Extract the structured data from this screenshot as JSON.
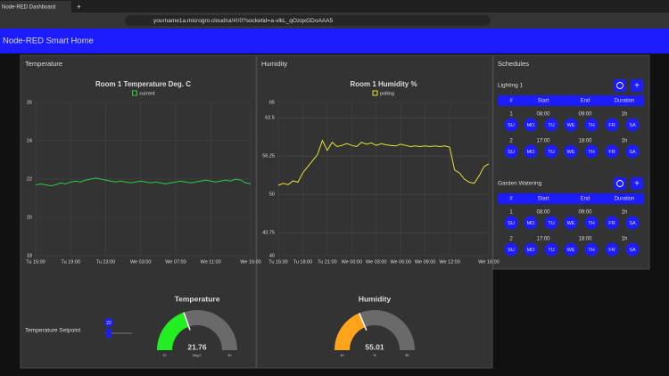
{
  "browser": {
    "tab_title": "Node-RED Dashboard",
    "url": "yourname1a.microgro.cloud/ui/#!/0?socketid=a-vlkL_qOzqxGDoAAA5"
  },
  "header": {
    "title": "Node-RED Smart Home"
  },
  "temperature": {
    "group_title": "Temperature",
    "chart": {
      "type": "line",
      "title": "Room 1 Temperature Deg. C",
      "categories": [
        "Tu 15:00",
        null,
        null,
        null,
        null,
        null,
        null,
        "Tu 19:00",
        null,
        null,
        null,
        null,
        null,
        null,
        "Tu 23:00",
        null,
        null,
        null,
        null,
        null,
        null,
        "We 03:00",
        null,
        null,
        null,
        null,
        null,
        null,
        "We 07:00",
        null,
        null,
        null,
        null,
        null,
        null,
        "We 11:00",
        null,
        null,
        null,
        null,
        null,
        null,
        null,
        "We 16:00"
      ],
      "series": [
        {
          "name": "current",
          "color": "#2ecc40",
          "values": [
            21.7,
            21.75,
            21.7,
            21.65,
            21.7,
            21.8,
            21.75,
            21.85,
            21.9,
            21.85,
            21.95,
            22.0,
            22.05,
            22.0,
            21.95,
            21.9,
            21.85,
            21.9,
            21.85,
            21.8,
            21.85,
            21.9,
            21.85,
            21.8,
            21.85,
            21.8,
            21.75,
            21.8,
            21.85,
            21.9,
            21.85,
            21.8,
            21.85,
            21.9,
            21.95,
            21.9,
            21.85,
            21.9,
            21.95,
            21.9,
            22.0,
            21.95,
            21.8,
            21.75
          ]
        }
      ],
      "ylim": [
        18,
        26
      ],
      "yticks": [
        18,
        20,
        22,
        24,
        26
      ],
      "grid": true
    },
    "setpoint": {
      "label": "Temperature Setpoint",
      "value": 22
    },
    "gauge": {
      "title": "Temperature",
      "value": 21.76,
      "units": "Deg.C",
      "min": 10,
      "max": 40,
      "color": "#22ee22"
    }
  },
  "humidity": {
    "group_title": "Humidity",
    "chart": {
      "type": "line",
      "title": "Room 1 Humidity %",
      "categories": [
        "Tu 15:00",
        null,
        null,
        null,
        null,
        "Tu 18:00",
        null,
        null,
        null,
        null,
        "Tu 21:00",
        null,
        null,
        null,
        null,
        "We 00:00",
        null,
        null,
        null,
        null,
        "We 03:00",
        null,
        null,
        null,
        null,
        "We 06:00",
        null,
        null,
        null,
        null,
        "We 09:00",
        null,
        null,
        null,
        null,
        "We 12:00",
        null,
        null,
        null,
        null,
        null,
        null,
        null,
        "We 16:00"
      ],
      "series": [
        {
          "name": "polling",
          "color": "#e6e62e",
          "values": [
            51.5,
            51.8,
            51.6,
            52.2,
            52,
            53.5,
            54.5,
            55.5,
            56.5,
            58.8,
            57.2,
            58.5,
            57.8,
            58,
            58.3,
            58,
            57.8,
            58.5,
            58.2,
            58.4,
            58,
            58.3,
            58.1,
            58,
            57.9,
            58.2,
            58,
            57.8,
            57.9,
            57.8,
            57.9,
            57.8,
            57.9,
            57.8,
            57.9,
            57.7,
            54,
            53.5,
            52.5,
            52,
            51.8,
            53,
            54.5,
            55
          ]
        }
      ],
      "ylim": [
        40,
        65
      ],
      "yticks": [
        40,
        43.75,
        50,
        56.25,
        62.5,
        65
      ],
      "grid": true
    },
    "gauge": {
      "title": "Humidity",
      "value": 55.01,
      "units": "%",
      "min": 40,
      "max": 80,
      "color": "#ffa31a"
    }
  },
  "schedules": {
    "group_title": "Schedules",
    "columns": [
      "#",
      "Start",
      "End",
      "Duration"
    ],
    "days": [
      "SU",
      "MO",
      "TU",
      "WE",
      "TH",
      "FR",
      "SA"
    ],
    "items": [
      {
        "name": "Lighting 1",
        "rows": [
          [
            1,
            "08:00",
            "09:00",
            "1h"
          ],
          [
            2,
            "17:00",
            "18:00",
            "1h"
          ]
        ]
      },
      {
        "name": "Garden Watering",
        "rows": [
          [
            1,
            "08:00",
            "09:00",
            "1h"
          ],
          [
            2,
            "17:00",
            "18:00",
            "1h"
          ]
        ]
      }
    ]
  }
}
